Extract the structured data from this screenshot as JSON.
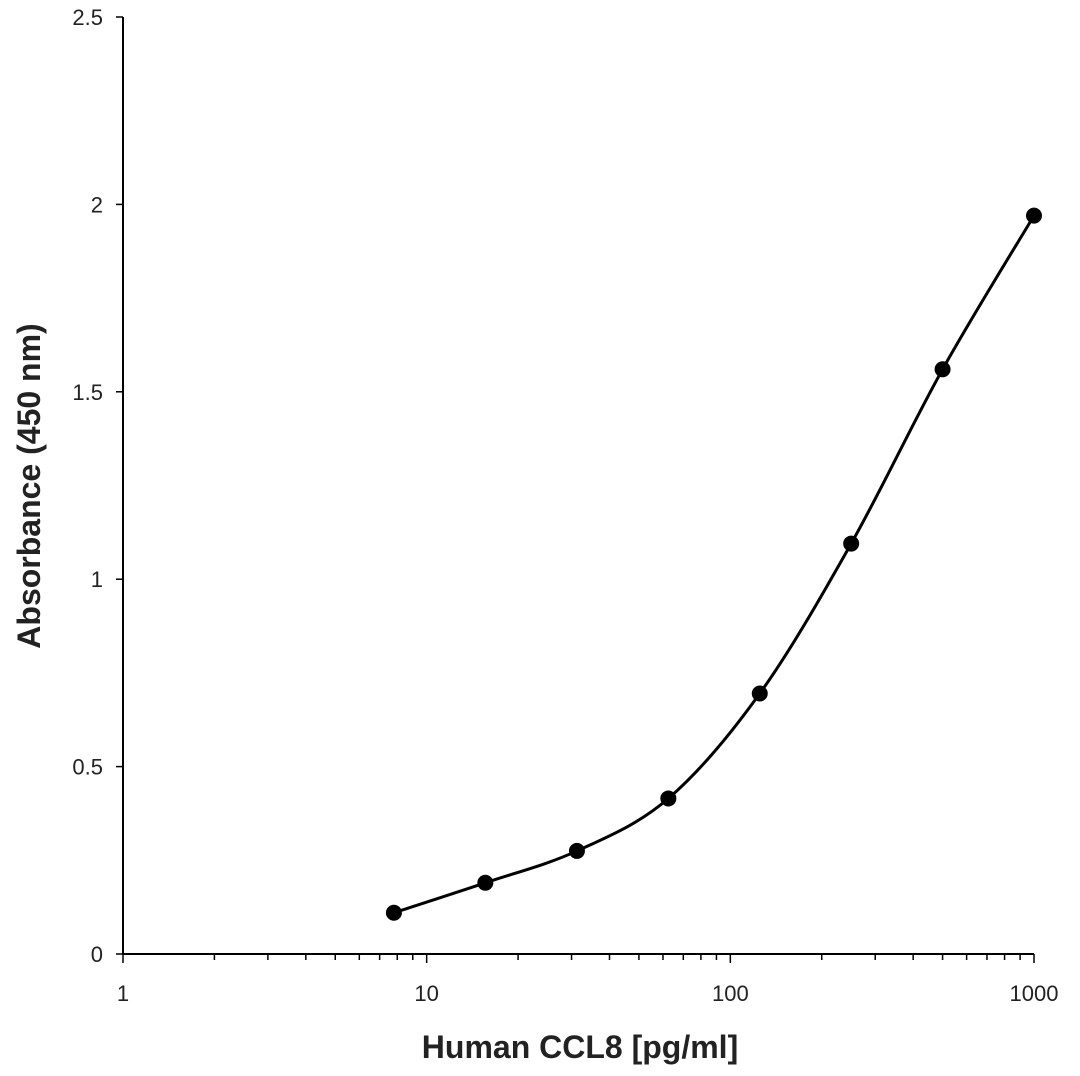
{
  "chart_data": {
    "type": "line",
    "title": "",
    "xlabel": "Human CCL8 [pg/ml]",
    "ylabel": "Absorbance (450 nm)",
    "x_scale": "log",
    "xlim": [
      1,
      1000
    ],
    "ylim": [
      0,
      2.5
    ],
    "x_ticks": [
      1,
      10,
      100,
      1000
    ],
    "x_tick_labels": [
      "1",
      "10",
      "100",
      "1000"
    ],
    "y_ticks": [
      0,
      0.5,
      1,
      1.5,
      2,
      2.5
    ],
    "y_tick_labels": [
      "0",
      "0.5",
      "1",
      "1.5",
      "2",
      "2.5"
    ],
    "grid": false,
    "legend": "none",
    "series": [
      {
        "name": "Human CCL8",
        "smoothed": true,
        "marker": "circle",
        "color": "#000000",
        "x": [
          7.8,
          15.6,
          31.25,
          62.5,
          125,
          250,
          500,
          1000
        ],
        "y": [
          0.11,
          0.19,
          0.275,
          0.415,
          0.695,
          1.095,
          1.56,
          1.97
        ]
      }
    ]
  }
}
